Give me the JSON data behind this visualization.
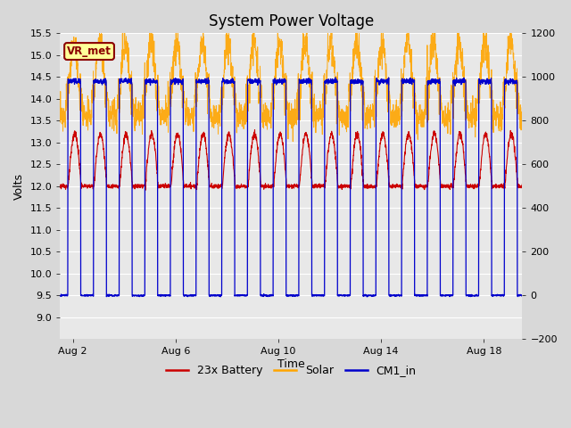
{
  "title": "System Power Voltage",
  "xlabel": "Time",
  "ylabel_left": "Volts",
  "ylim_left": [
    8.5,
    15.5
  ],
  "ylim_right": [
    -200,
    1200
  ],
  "yticks_left": [
    9.0,
    9.5,
    10.0,
    10.5,
    11.0,
    11.5,
    12.0,
    12.5,
    13.0,
    13.5,
    14.0,
    14.5,
    15.0,
    15.5
  ],
  "yticks_right": [
    -200,
    0,
    200,
    400,
    600,
    800,
    1000,
    1200
  ],
  "xtick_labels": [
    "Aug 2",
    "Aug 6",
    "Aug 10",
    "Aug 14",
    "Aug 18"
  ],
  "xtick_positions": [
    2,
    6,
    10,
    14,
    18
  ],
  "xmin": 1.5,
  "xmax": 19.5,
  "fig_bg_color": "#d8d8d8",
  "plot_bg_color": "#e8e8e8",
  "grid_color": "#ffffff",
  "annotation_text": "VR_met",
  "annotation_bg": "#ffff99",
  "annotation_border": "#8B0000",
  "annotation_text_color": "#8B0000",
  "line_battery_color": "#cc0000",
  "line_solar_color": "#ffa500",
  "line_cm1_color": "#0000cc",
  "legend_labels": [
    "23x Battery",
    "Solar",
    "CM1_in"
  ],
  "legend_colors": [
    "#cc0000",
    "#ffa500",
    "#0000cc"
  ],
  "title_fontsize": 12,
  "axis_fontsize": 9,
  "tick_fontsize": 8,
  "legend_fontsize": 9
}
